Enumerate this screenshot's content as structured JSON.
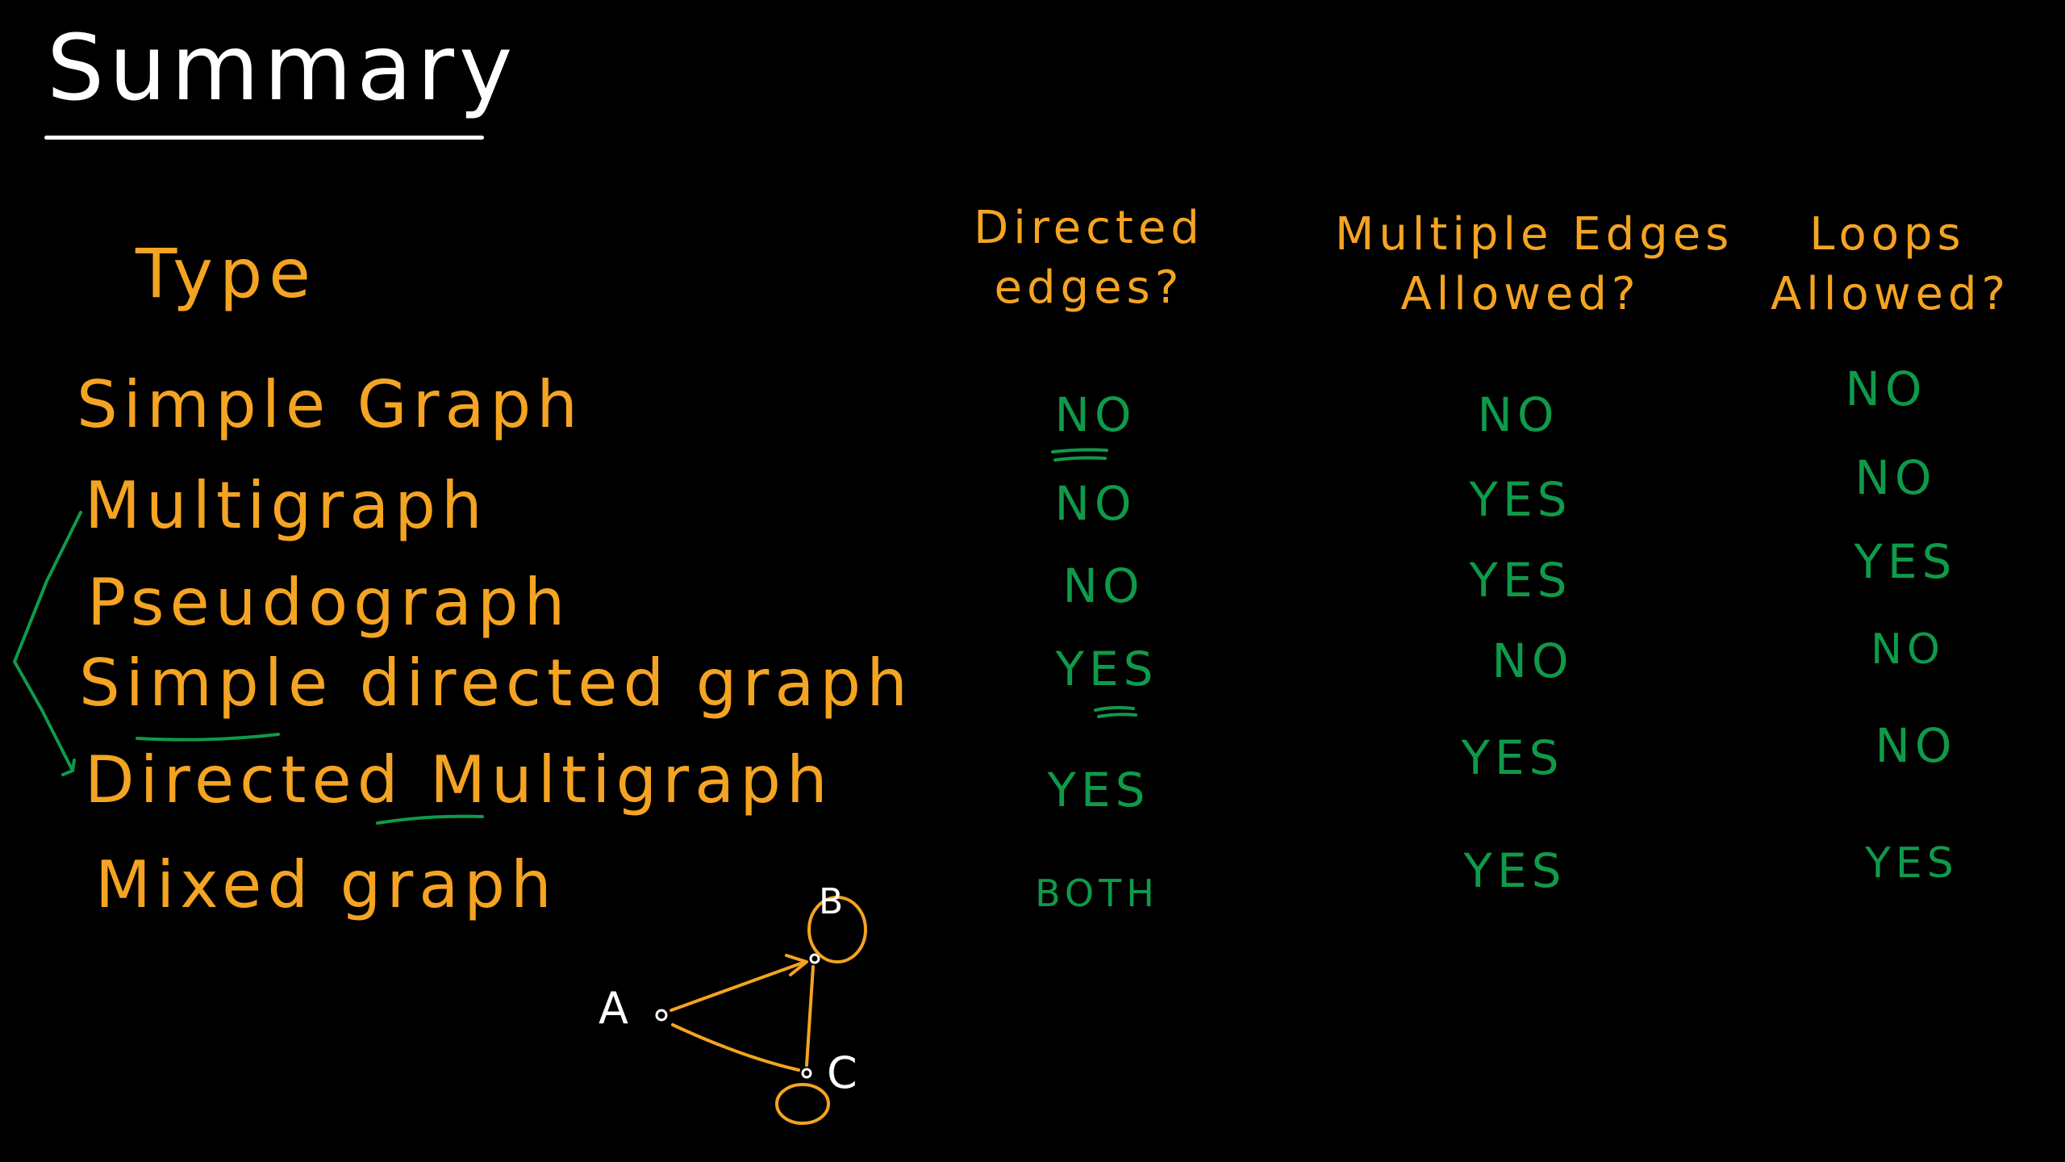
{
  "title": "Summary",
  "type_header": "Type",
  "columns": [
    {
      "line1": "Directed",
      "line2": "edges?"
    },
    {
      "line1": "Multiple Edges",
      "line2": "Allowed?"
    },
    {
      "line1": "Loops",
      "line2": "Allowed?"
    }
  ],
  "rows": [
    {
      "type": "Simple Graph",
      "directed": "NO",
      "multiple": "NO",
      "loops": "NO"
    },
    {
      "type": "Multigraph",
      "directed": "NO",
      "multiple": "YES",
      "loops": "NO"
    },
    {
      "type": "Pseudograph",
      "directed": "NO",
      "multiple": "YES",
      "loops": "YES"
    },
    {
      "type": "Simple directed graph",
      "directed": "YES",
      "multiple": "NO",
      "loops": "NO"
    },
    {
      "type": "Directed Multigraph",
      "directed": "YES",
      "multiple": "YES",
      "loops": "NO"
    },
    {
      "type": "Mixed graph",
      "directed": "BOTH",
      "multiple": "YES",
      "loops": "YES"
    }
  ],
  "diagram": {
    "nodes": [
      "A",
      "B",
      "C"
    ]
  },
  "colors": {
    "background": "#000000",
    "title": "#ffffff",
    "labels": "#f4a422",
    "answers": "#0f9a4a"
  }
}
